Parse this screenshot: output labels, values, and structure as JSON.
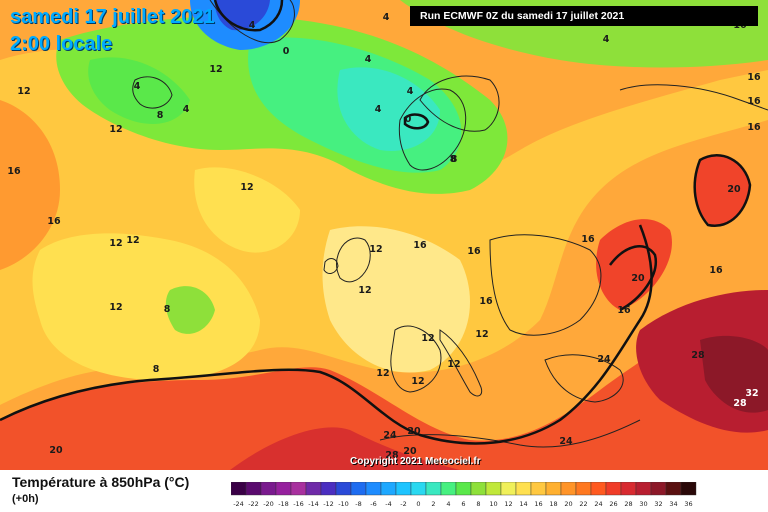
{
  "title": {
    "date": "samedi 17 juillet 2021",
    "time": "2:00 locale"
  },
  "run_banner": "Run ECMWF 0Z du samedi 17 juillet 2021",
  "copyright": "Copyright 2021 Meteociel.fr",
  "footer": {
    "variable": "Température à 850hPa (°C)",
    "lead": "(+0h)"
  },
  "legend": {
    "ticks": [
      "-24",
      "-22",
      "-20",
      "-18",
      "-16",
      "-14",
      "-12",
      "-10",
      "-8",
      "-6",
      "-4",
      "-2",
      "0",
      "2",
      "4",
      "6",
      "8",
      "10",
      "12",
      "14",
      "16",
      "18",
      "20",
      "22",
      "24",
      "26",
      "28",
      "30",
      "32",
      "34",
      "36"
    ],
    "colors": [
      "#3a0046",
      "#5a0a6e",
      "#7a1a8e",
      "#96209e",
      "#a8309e",
      "#6f2aa8",
      "#4b2ec0",
      "#2a4ad8",
      "#1e6cf0",
      "#1e8cff",
      "#1ea8ff",
      "#1ec4ff",
      "#2ad8f0",
      "#3ae8c0",
      "#46f080",
      "#5ae84a",
      "#8ee03a",
      "#c0e83a",
      "#f0f05a",
      "#ffe050",
      "#ffc840",
      "#ffb030",
      "#ff9428",
      "#ff7820",
      "#ff5a20",
      "#f03c28",
      "#d82a30",
      "#b81e30",
      "#8c1828",
      "#5a1010",
      "#2a0808"
    ]
  },
  "map_labels": [
    {
      "text": "4",
      "kind": "dark"
    },
    {
      "text": "4",
      "kind": "dark"
    },
    {
      "text": "0",
      "kind": "dark"
    },
    {
      "text": "4",
      "kind": "dark"
    },
    {
      "text": "4",
      "kind": "dark"
    },
    {
      "text": "4",
      "kind": "dark"
    },
    {
      "text": "16",
      "kind": "dark"
    },
    {
      "text": "16",
      "kind": "dark"
    },
    {
      "text": "12",
      "kind": "dark"
    },
    {
      "text": "12",
      "kind": "dark"
    },
    {
      "text": "4",
      "kind": "dark"
    },
    {
      "text": "8",
      "kind": "dark"
    },
    {
      "text": "4",
      "kind": "dark"
    },
    {
      "text": "4",
      "kind": "dark"
    },
    {
      "text": "8",
      "kind": "dark"
    },
    {
      "text": "0",
      "kind": "dark"
    },
    {
      "text": "12",
      "kind": "dark"
    },
    {
      "text": "16",
      "kind": "dark"
    },
    {
      "text": "16",
      "kind": "dark"
    },
    {
      "text": "12",
      "kind": "dark"
    },
    {
      "text": "8",
      "kind": "dark"
    },
    {
      "text": "16",
      "kind": "dark"
    },
    {
      "text": "16",
      "kind": "dark"
    },
    {
      "text": "12",
      "kind": "dark"
    },
    {
      "text": "20",
      "kind": "dark"
    },
    {
      "text": "12",
      "kind": "dark"
    },
    {
      "text": "12",
      "kind": "dark"
    },
    {
      "text": "16",
      "kind": "dark"
    },
    {
      "text": "16",
      "kind": "dark"
    },
    {
      "text": "12",
      "kind": "dark"
    },
    {
      "text": "16",
      "kind": "dark"
    },
    {
      "text": "12",
      "kind": "dark"
    },
    {
      "text": "12",
      "kind": "dark"
    },
    {
      "text": "16",
      "kind": "dark"
    },
    {
      "text": "20",
      "kind": "dark"
    },
    {
      "text": "16",
      "kind": "dark"
    },
    {
      "text": "12",
      "kind": "dark"
    },
    {
      "text": "8",
      "kind": "dark"
    },
    {
      "text": "16",
      "kind": "dark"
    },
    {
      "text": "12",
      "kind": "dark"
    },
    {
      "text": "24",
      "kind": "dark"
    },
    {
      "text": "28",
      "kind": "dark"
    },
    {
      "text": "8",
      "kind": "dark"
    },
    {
      "text": "12",
      "kind": "dark"
    },
    {
      "text": "12",
      "kind": "dark"
    },
    {
      "text": "32",
      "kind": "light"
    },
    {
      "text": "28",
      "kind": "light"
    },
    {
      "text": "24",
      "kind": "dark"
    },
    {
      "text": "20",
      "kind": "dark"
    },
    {
      "text": "20",
      "kind": "dark"
    },
    {
      "text": "24",
      "kind": "dark"
    },
    {
      "text": "28",
      "kind": "dark"
    },
    {
      "text": "20",
      "kind": "dark"
    },
    {
      "text": "24",
      "kind": "dark"
    }
  ]
}
